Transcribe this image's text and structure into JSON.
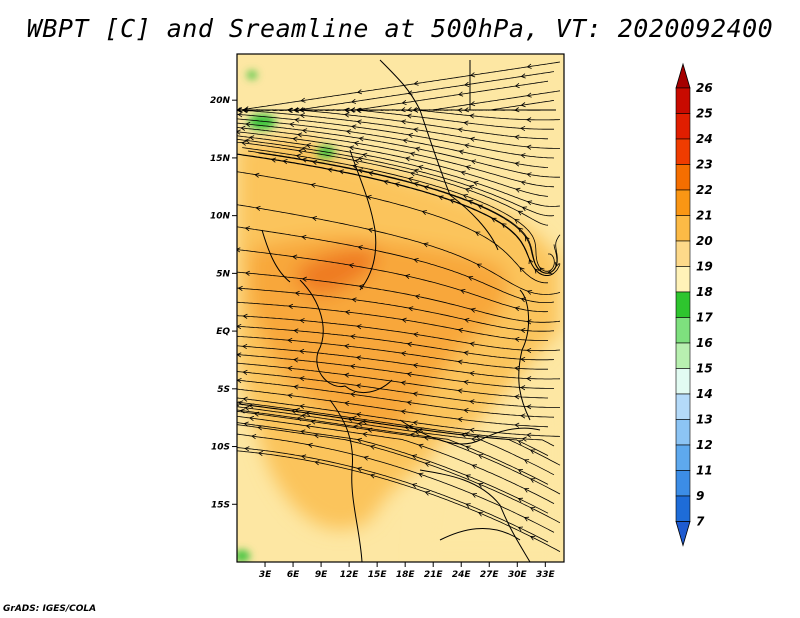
{
  "title": "WBPT [C] and Sreamline at 500hPa, VT: 2020092400",
  "footer": "GrADS: IGES/COLA",
  "map": {
    "lon_range": [
      0,
      35
    ],
    "lat_range": [
      -20,
      24
    ],
    "lat_ticks": [
      {
        "value": 20,
        "label": "20N"
      },
      {
        "value": 15,
        "label": "15N"
      },
      {
        "value": 10,
        "label": "10N"
      },
      {
        "value": 5,
        "label": "5N"
      },
      {
        "value": 0,
        "label": "EQ"
      },
      {
        "value": -5,
        "label": "5S"
      },
      {
        "value": -10,
        "label": "10S"
      },
      {
        "value": -15,
        "label": "15S"
      }
    ],
    "lon_ticks": [
      {
        "value": 3,
        "label": "3E"
      },
      {
        "value": 6,
        "label": "6E"
      },
      {
        "value": 9,
        "label": "9E"
      },
      {
        "value": 12,
        "label": "12E"
      },
      {
        "value": 15,
        "label": "15E"
      },
      {
        "value": 18,
        "label": "18E"
      },
      {
        "value": 21,
        "label": "21E"
      },
      {
        "value": 24,
        "label": "24E"
      },
      {
        "value": 27,
        "label": "27E"
      },
      {
        "value": 30,
        "label": "30E"
      },
      {
        "value": 33,
        "label": "33E"
      }
    ]
  },
  "colorbar": {
    "levels": [
      {
        "label": "26",
        "color": "#a50000"
      },
      {
        "label": "25",
        "color": "#c80a00"
      },
      {
        "label": "24",
        "color": "#e01e00"
      },
      {
        "label": "23",
        "color": "#f03c00"
      },
      {
        "label": "22",
        "color": "#f56e00"
      },
      {
        "label": "21",
        "color": "#fa9614"
      },
      {
        "label": "20",
        "color": "#fcba46"
      },
      {
        "label": "19",
        "color": "#fdd98a"
      },
      {
        "label": "18",
        "color": "#fff2b8"
      },
      {
        "label": "17",
        "color": "#2ec52e"
      },
      {
        "label": "16",
        "color": "#7ee07e"
      },
      {
        "label": "15",
        "color": "#b8f0b0"
      },
      {
        "label": "14",
        "color": "#e2fbf2"
      },
      {
        "label": "13",
        "color": "#b4daf9"
      },
      {
        "label": "12",
        "color": "#8cc4f4"
      },
      {
        "label": "11",
        "color": "#5ea9ee"
      },
      {
        "label": "9",
        "color": "#3c8de6"
      },
      {
        "label": "7",
        "color": "#1e6cd8"
      }
    ],
    "bottom_arrow_color": "#1f5bd0"
  },
  "colors": {
    "land_base": "#fde7a3",
    "warm": "#fbc45c",
    "warmer": "#f8a73a",
    "hot": "#ef7a20",
    "green": "#3cc43c",
    "lightgreen": "#8ee28e"
  }
}
